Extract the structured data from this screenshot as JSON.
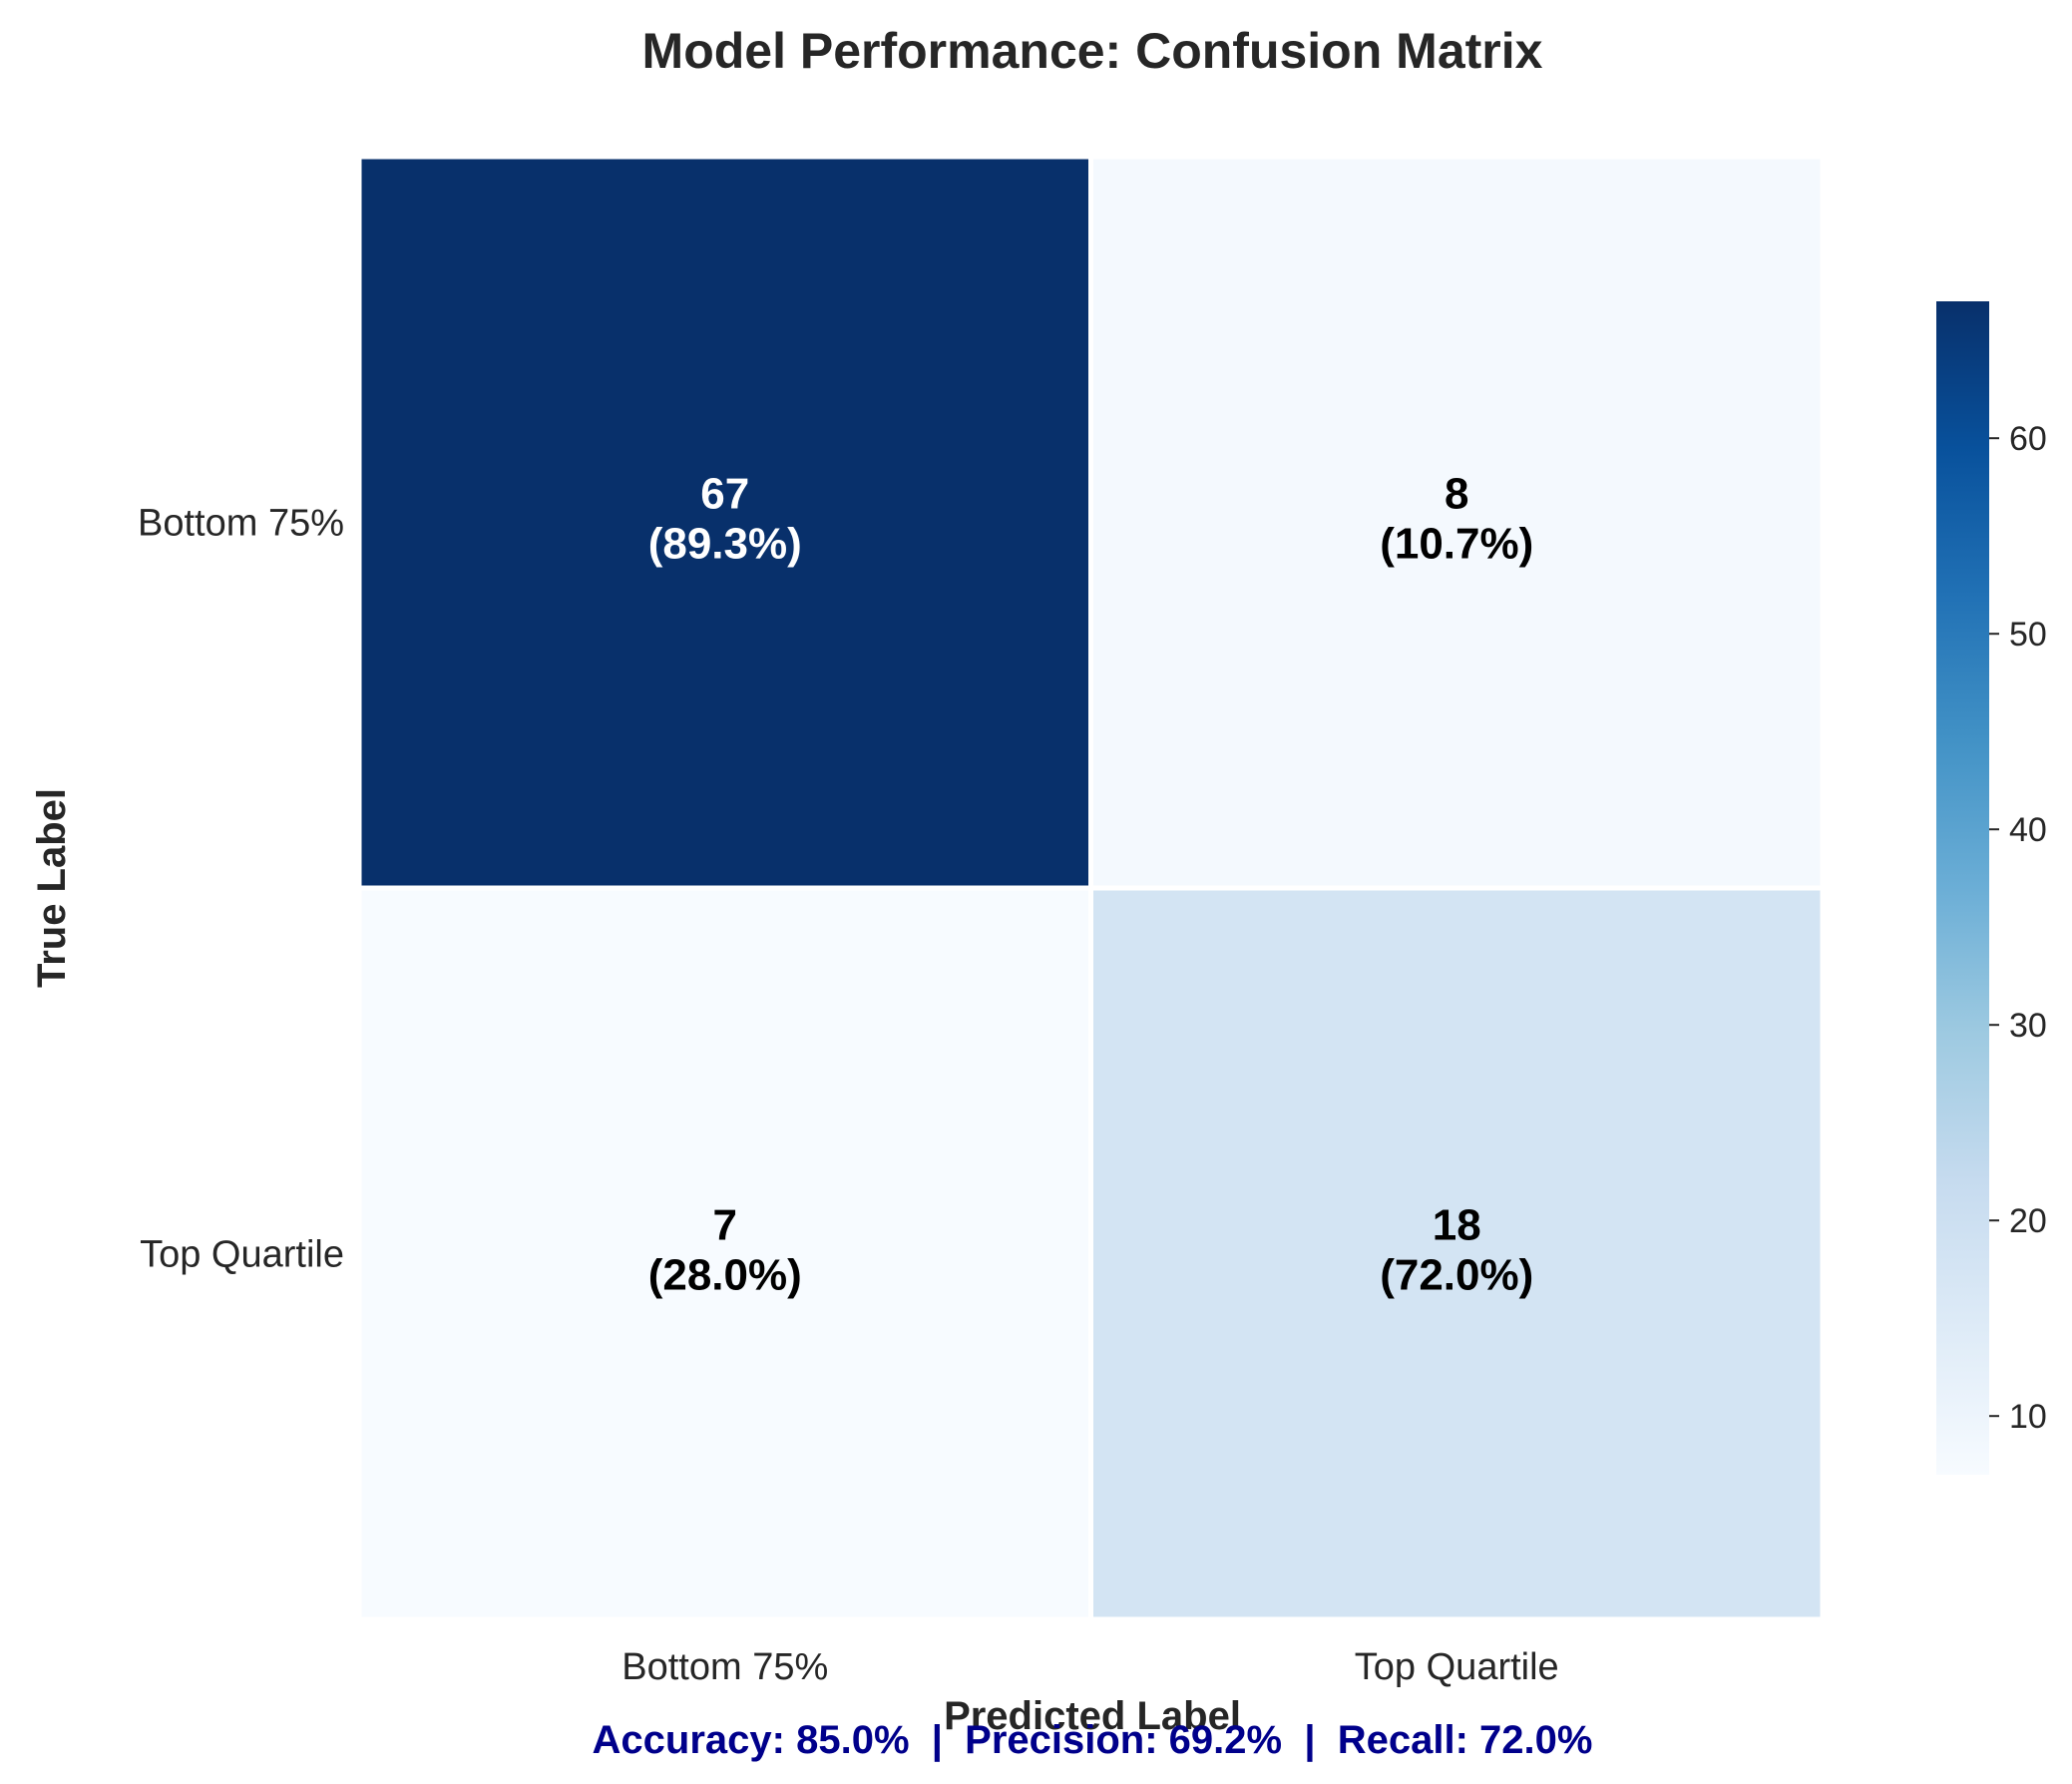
{
  "chart_data": {
    "type": "heatmap",
    "title": "Model Performance: Confusion Matrix",
    "xlabel": "Predicted Label",
    "ylabel": "True Label",
    "x_categories": [
      "Bottom 75%",
      "Top Quartile"
    ],
    "y_categories": [
      "Bottom 75%",
      "Top Quartile"
    ],
    "values": [
      [
        67,
        8
      ],
      [
        7,
        18
      ]
    ],
    "cell_percent_labels": [
      [
        "(89.3%)",
        "(10.7%)"
      ],
      [
        "(28.0%)",
        "(72.0%)"
      ]
    ],
    "colormap": "Blues",
    "color_range": [
      7,
      67
    ],
    "colorbar_ticks": [
      10,
      20,
      30,
      40,
      50,
      60
    ],
    "colorbar_placement": "right",
    "metrics_text": "Accuracy: 85.0%  |  Precision: 69.2%  |  Recall: 72.0%",
    "metrics_color": "#00008b"
  }
}
